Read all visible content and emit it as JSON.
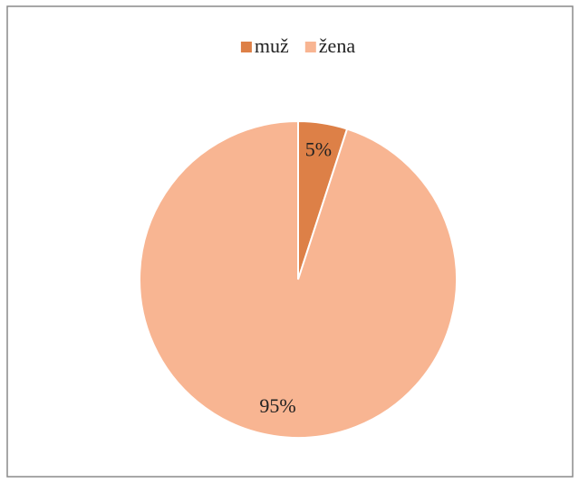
{
  "chart_data": {
    "type": "pie",
    "categories": [
      "muž",
      "žena"
    ],
    "values": [
      5,
      95
    ],
    "value_labels": [
      "5%",
      "95%"
    ],
    "colors": [
      "#dd8047",
      "#f8b592"
    ],
    "legend": "top"
  }
}
